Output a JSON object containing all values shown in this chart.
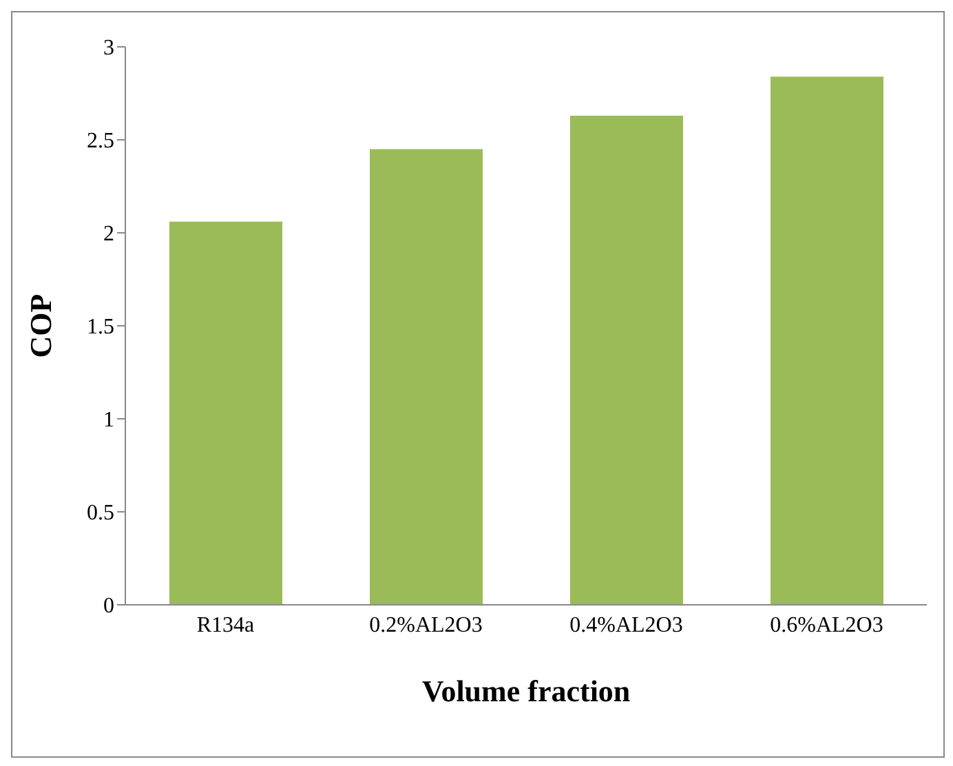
{
  "chart_data": {
    "type": "bar",
    "xlabel": "Volume fraction",
    "ylabel": "COP",
    "categories": [
      "R134a",
      "0.2%AL2O3",
      "0.4%AL2O3",
      "0.6%AL2O3"
    ],
    "values": [
      2.06,
      2.45,
      2.63,
      2.84
    ],
    "color": "#9bbb59",
    "ylim": [
      0,
      3
    ],
    "yticks": [
      0,
      0.5,
      1,
      1.5,
      2,
      2.5,
      3
    ],
    "grid": false,
    "legend": false
  }
}
